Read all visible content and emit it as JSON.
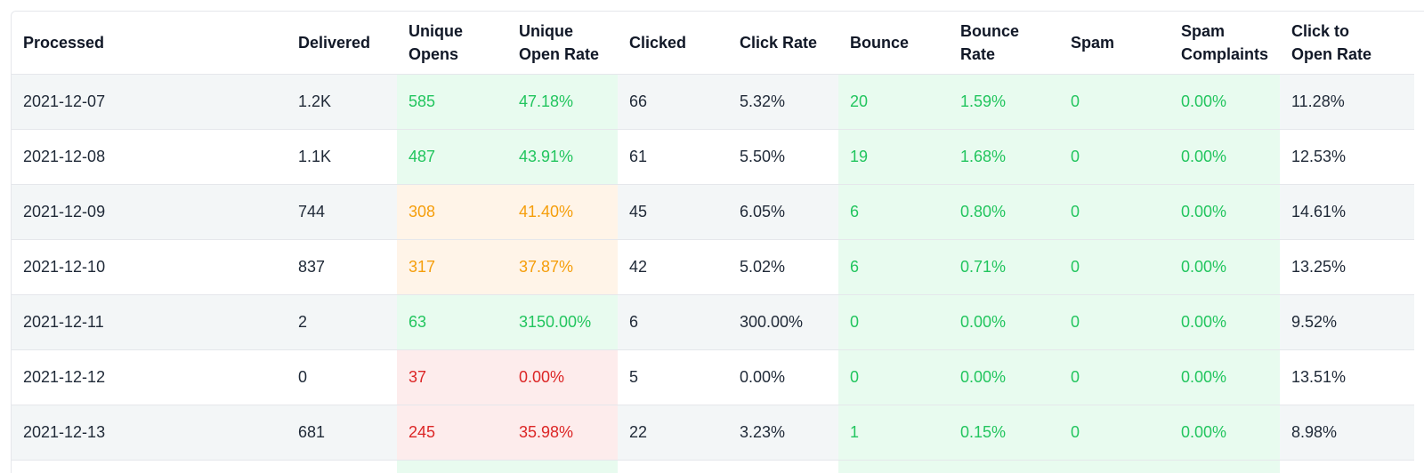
{
  "colors": {
    "good_bg": "#e8fbef",
    "good_text": "#22c55e",
    "warn_bg": "#fff4e8",
    "warn_text": "#f59e0b",
    "bad_bg": "#fdecec",
    "bad_text": "#dc2626",
    "row_alt": "#f3f6f7"
  },
  "headers": [
    {
      "l1": "",
      "l2": "Processed"
    },
    {
      "l1": "",
      "l2": "Delivered"
    },
    {
      "l1": "Unique",
      "l2": "Opens"
    },
    {
      "l1": "Unique",
      "l2": "Open Rate"
    },
    {
      "l1": "",
      "l2": "Clicked"
    },
    {
      "l1": "",
      "l2": "Click Rate"
    },
    {
      "l1": "",
      "l2": "Bounce"
    },
    {
      "l1": "Bounce",
      "l2": "Rate"
    },
    {
      "l1": "",
      "l2": "Spam"
    },
    {
      "l1": "Spam",
      "l2": "Complaints"
    },
    {
      "l1": "Click to",
      "l2": "Open Rate"
    }
  ],
  "rows": [
    {
      "cells": [
        "2021-12-07",
        "1.2K",
        "585",
        "47.18%",
        "66",
        "5.32%",
        "20",
        "1.59%",
        "0",
        "0.00%",
        "11.28%"
      ],
      "status": [
        "",
        "",
        "good",
        "good",
        "",
        "",
        "good",
        "good",
        "good",
        "good",
        ""
      ]
    },
    {
      "cells": [
        "2021-12-08",
        "1.1K",
        "487",
        "43.91%",
        "61",
        "5.50%",
        "19",
        "1.68%",
        "0",
        "0.00%",
        "12.53%"
      ],
      "status": [
        "",
        "",
        "good",
        "good",
        "",
        "",
        "good",
        "good",
        "good",
        "good",
        ""
      ]
    },
    {
      "cells": [
        "2021-12-09",
        "744",
        "308",
        "41.40%",
        "45",
        "6.05%",
        "6",
        "0.80%",
        "0",
        "0.00%",
        "14.61%"
      ],
      "status": [
        "",
        "",
        "warn",
        "warn",
        "",
        "",
        "good",
        "good",
        "good",
        "good",
        ""
      ]
    },
    {
      "cells": [
        "2021-12-10",
        "837",
        "317",
        "37.87%",
        "42",
        "5.02%",
        "6",
        "0.71%",
        "0",
        "0.00%",
        "13.25%"
      ],
      "status": [
        "",
        "",
        "warn",
        "warn",
        "",
        "",
        "good",
        "good",
        "good",
        "good",
        ""
      ]
    },
    {
      "cells": [
        "2021-12-11",
        "2",
        "63",
        "3150.00%",
        "6",
        "300.00%",
        "0",
        "0.00%",
        "0",
        "0.00%",
        "9.52%"
      ],
      "status": [
        "",
        "",
        "good",
        "good",
        "",
        "",
        "good",
        "good",
        "good",
        "good",
        ""
      ]
    },
    {
      "cells": [
        "2021-12-12",
        "0",
        "37",
        "0.00%",
        "5",
        "0.00%",
        "0",
        "0.00%",
        "0",
        "0.00%",
        "13.51%"
      ],
      "status": [
        "",
        "",
        "bad",
        "bad",
        "",
        "",
        "good",
        "good",
        "good",
        "good",
        ""
      ]
    },
    {
      "cells": [
        "2021-12-13",
        "681",
        "245",
        "35.98%",
        "22",
        "3.23%",
        "1",
        "0.15%",
        "0",
        "0.00%",
        "8.98%"
      ],
      "status": [
        "",
        "",
        "bad",
        "bad",
        "",
        "",
        "good",
        "good",
        "good",
        "good",
        ""
      ]
    }
  ],
  "partial_row_status": [
    "",
    "",
    "good",
    "good",
    "",
    "",
    "good",
    "good",
    "good",
    "good",
    ""
  ]
}
